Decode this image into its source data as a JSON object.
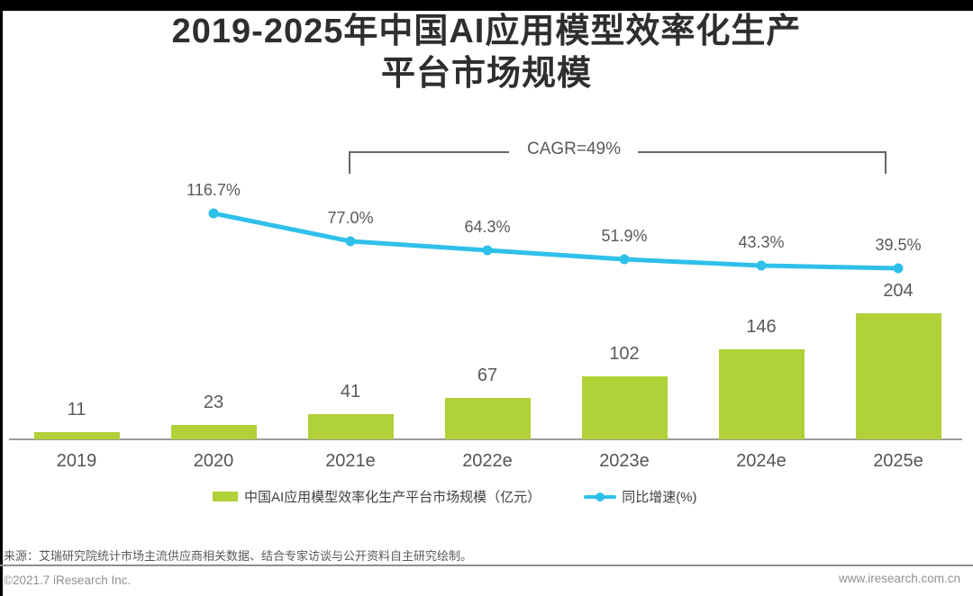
{
  "page": {
    "title_line1": "2019-2025年中国AI应用模型效率化生产",
    "title_line2": "平台市场规模",
    "source": "来源：艾瑞研究院统计市场主流供应商相关数据、结合专家访谈与公开资料自主研究绘制。",
    "footer_left": "©2021.7 iResearch Inc.",
    "footer_right": "www.iresearch.com.cn"
  },
  "chart_data": {
    "type": "bar",
    "title": "2019-2025年中国AI应用模型效率化生产平台市场规模",
    "categories": [
      "2019",
      "2020",
      "2021e",
      "2022e",
      "2023e",
      "2024e",
      "2025e"
    ],
    "series": [
      {
        "name": "中国AI应用模型效率化生产平台市场规模（亿元）",
        "type": "bar",
        "values": [
          11,
          23,
          41,
          67,
          102,
          146,
          204
        ],
        "color": "#b1d138"
      },
      {
        "name": "同比增速(%)",
        "type": "line",
        "categories": [
          "2020",
          "2021e",
          "2022e",
          "2023e",
          "2024e",
          "2025e"
        ],
        "values": [
          116.7,
          77.0,
          64.3,
          51.9,
          43.3,
          39.5
        ],
        "labels": [
          "116.7%",
          "77.0%",
          "64.3%",
          "51.9%",
          "43.3%",
          "39.5%"
        ],
        "color": "#2fc0ea"
      }
    ],
    "annotation": "CAGR=49%",
    "annotation_span": [
      "2021e",
      "2025e"
    ],
    "legend_position": "bottom",
    "grid": false,
    "value_labels": true
  }
}
